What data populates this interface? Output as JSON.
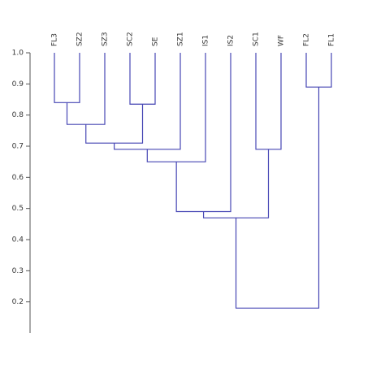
{
  "chart_data": {
    "type": "dendrogram",
    "leaves": [
      "FL3",
      "SZ2",
      "SZ3",
      "SC2",
      "SE",
      "SZ1",
      "IS1",
      "IS2",
      "SC1",
      "WF",
      "FL2",
      "FL1"
    ],
    "merges": [
      {
        "children": [
          0,
          1
        ],
        "height": 0.84
      },
      {
        "children": [
          3,
          4
        ],
        "height": 0.835
      },
      {
        "children": [
          10,
          11
        ],
        "height": 0.89
      },
      {
        "children": [
          12,
          2
        ],
        "height": 0.77
      },
      {
        "children": [
          15,
          13
        ],
        "height": 0.71
      },
      {
        "children": [
          16,
          5
        ],
        "height": 0.69
      },
      {
        "children": [
          8,
          9
        ],
        "height": 0.69
      },
      {
        "children": [
          17,
          6
        ],
        "height": 0.65
      },
      {
        "children": [
          19,
          7
        ],
        "height": 0.49
      },
      {
        "children": [
          20,
          18
        ],
        "height": 0.47
      },
      {
        "children": [
          21,
          14
        ],
        "height": 0.18
      }
    ],
    "color": "#4646b4",
    "ylim": [
      0.1,
      1.0
    ],
    "yticks": [
      {
        "value": 1.0,
        "label": "1.0"
      },
      0.9,
      0.8,
      0.7,
      0.6,
      0.5,
      0.4,
      0.3,
      0.2
    ]
  }
}
